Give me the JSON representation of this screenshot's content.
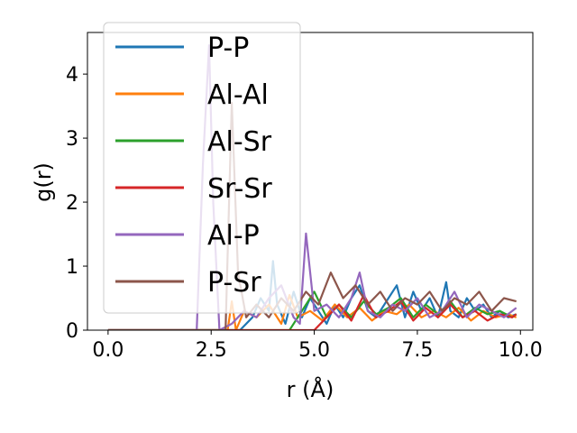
{
  "chart_data": {
    "type": "line",
    "xlabel": "r (Å)",
    "ylabel": "g(r)",
    "xlim": [
      -0.5,
      10.3
    ],
    "ylim": [
      0,
      4.65
    ],
    "xticks": [
      0.0,
      2.5,
      5.0,
      7.5,
      10.0
    ],
    "xtick_labels": [
      "0.0",
      "2.5",
      "5.0",
      "7.5",
      "10.0"
    ],
    "yticks": [
      0,
      1,
      2,
      3,
      4
    ],
    "ytick_labels": [
      "0",
      "1",
      "2",
      "3",
      "4"
    ],
    "grid": false,
    "legend_position": "upper-left",
    "series": [
      {
        "name": "P-P",
        "color": "#1f77b4",
        "x": [
          0,
          3.2,
          3.5,
          3.7,
          3.9,
          4.0,
          4.1,
          4.3,
          4.5,
          4.7,
          4.9,
          5.1,
          5.3,
          5.5,
          5.7,
          5.9,
          6.1,
          6.3,
          6.5,
          6.8,
          7.0,
          7.2,
          7.4,
          7.6,
          7.8,
          8.0,
          8.2,
          8.3,
          8.5,
          8.7,
          8.9,
          9.1,
          9.3,
          9.5,
          9.7,
          9.9
        ],
        "y": [
          0,
          0,
          0.2,
          0.5,
          0.3,
          1.08,
          0.4,
          0.1,
          0.6,
          0.2,
          0.5,
          0.3,
          0.1,
          0.4,
          0.2,
          0.5,
          0.7,
          0.3,
          0.2,
          0.5,
          0.7,
          0.2,
          0.6,
          0.3,
          0.5,
          0.2,
          0.75,
          0.3,
          0.2,
          0.5,
          0.3,
          0.4,
          0.2,
          0.3,
          0.2,
          0.25
        ]
      },
      {
        "name": "Al-Al",
        "color": "#ff7f0e",
        "x": [
          0,
          2.9,
          3.0,
          3.1,
          3.3,
          3.6,
          3.9,
          4.2,
          4.4,
          4.6,
          4.9,
          5.2,
          5.5,
          5.8,
          6.1,
          6.4,
          6.7,
          7.0,
          7.3,
          7.6,
          7.9,
          8.2,
          8.5,
          8.8,
          9.1,
          9.4,
          9.7,
          9.9
        ],
        "y": [
          0,
          0,
          0.45,
          0,
          0.3,
          0.2,
          0.4,
          0.1,
          0.55,
          0.2,
          0.3,
          0.15,
          0.4,
          0.2,
          0.35,
          0.15,
          0.3,
          0.25,
          0.4,
          0.2,
          0.3,
          0.2,
          0.35,
          0.15,
          0.3,
          0.2,
          0.25,
          0.2
        ]
      },
      {
        "name": "Al-Sr",
        "color": "#2ca02c",
        "x": [
          0,
          4.4,
          4.7,
          5.0,
          5.3,
          5.6,
          5.9,
          6.2,
          6.5,
          6.8,
          7.1,
          7.4,
          7.7,
          8.0,
          8.3,
          8.6,
          8.9,
          9.2,
          9.5,
          9.8,
          9.9
        ],
        "y": [
          0,
          0,
          0.3,
          0.6,
          0.2,
          0.4,
          0.2,
          0.45,
          0.25,
          0.35,
          0.5,
          0.2,
          0.4,
          0.25,
          0.45,
          0.2,
          0.35,
          0.25,
          0.3,
          0.2,
          0.25
        ]
      },
      {
        "name": "Sr-Sr",
        "color": "#d62728",
        "x": [
          0,
          5.0,
          5.3,
          5.6,
          5.9,
          6.2,
          6.5,
          6.8,
          7.1,
          7.4,
          7.7,
          8.0,
          8.3,
          8.6,
          8.9,
          9.2,
          9.5,
          9.8,
          9.9
        ],
        "y": [
          0,
          0,
          0.2,
          0.4,
          0.15,
          0.55,
          0.2,
          0.3,
          0.45,
          0.15,
          0.35,
          0.2,
          0.4,
          0.2,
          0.3,
          0.15,
          0.25,
          0.2,
          0.25
        ]
      },
      {
        "name": "Al-P",
        "color": "#9467bd",
        "x": [
          0,
          2.15,
          2.3,
          2.45,
          2.55,
          2.7,
          3.0,
          3.3,
          3.6,
          3.9,
          4.2,
          4.5,
          4.65,
          4.8,
          5.0,
          5.3,
          5.6,
          5.9,
          6.1,
          6.3,
          6.6,
          6.9,
          7.2,
          7.5,
          7.8,
          8.1,
          8.4,
          8.7,
          9.0,
          9.3,
          9.6,
          9.9
        ],
        "y": [
          0,
          0,
          2.6,
          4.45,
          2.0,
          0,
          0.1,
          0.3,
          0.2,
          0.5,
          0.7,
          0.2,
          0.1,
          1.51,
          0.3,
          0.4,
          0.2,
          0.5,
          0.9,
          0.3,
          0.2,
          0.4,
          0.3,
          0.5,
          0.2,
          0.3,
          0.6,
          0.2,
          0.4,
          0.3,
          0.2,
          0.35
        ]
      },
      {
        "name": "P-Sr",
        "color": "#8c564b",
        "x": [
          0,
          2.85,
          3.0,
          3.15,
          3.35,
          3.6,
          3.9,
          4.2,
          4.5,
          4.8,
          5.1,
          5.4,
          5.7,
          6.0,
          6.3,
          6.6,
          6.9,
          7.2,
          7.5,
          7.8,
          8.1,
          8.4,
          8.7,
          9.0,
          9.3,
          9.6,
          9.9
        ],
        "y": [
          0,
          0,
          3.55,
          0.9,
          0.2,
          0.4,
          0.2,
          0.5,
          0.3,
          0.6,
          0.4,
          0.9,
          0.5,
          0.7,
          0.4,
          0.6,
          0.3,
          0.5,
          0.4,
          0.6,
          0.3,
          0.5,
          0.4,
          0.6,
          0.3,
          0.5,
          0.45
        ]
      }
    ]
  }
}
